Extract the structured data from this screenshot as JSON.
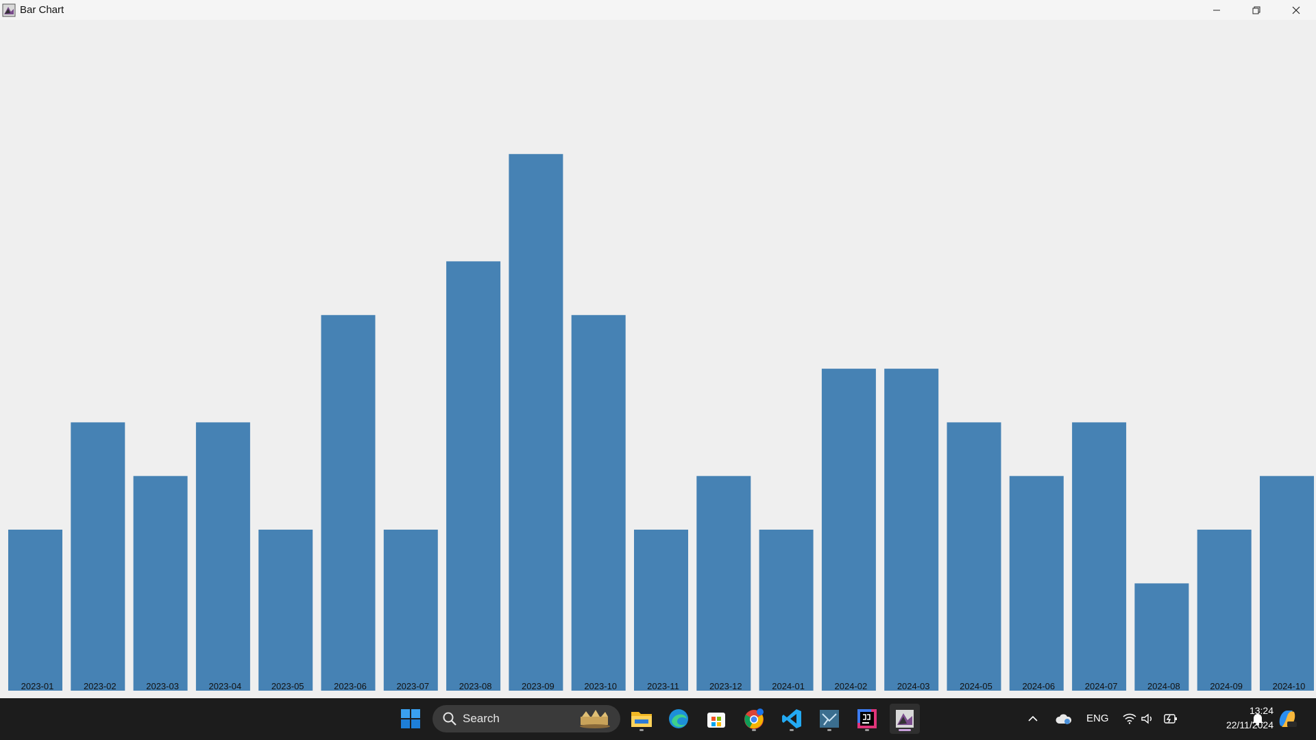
{
  "window": {
    "title": "Bar Chart",
    "controls": [
      "minimize-icon",
      "restore-icon",
      "close-icon"
    ]
  },
  "chart_data": {
    "type": "bar",
    "categories": [
      "2023-01",
      "2023-02",
      "2023-03",
      "2023-04",
      "2023-05",
      "2023-06",
      "2023-07",
      "2023-08",
      "2023-09",
      "2023-10",
      "2023-11",
      "2023-12",
      "2024-01",
      "2024-02",
      "2024-03",
      "2024-05",
      "2024-06",
      "2024-07",
      "2024-08",
      "2024-09",
      "2024-10"
    ],
    "values": [
      3,
      5,
      4,
      5,
      3,
      7,
      3,
      8,
      10,
      7,
      3,
      4,
      3,
      6,
      6,
      5,
      4,
      5,
      2,
      3,
      4
    ],
    "ylim": [
      0,
      12.5
    ],
    "grid": false,
    "legend": "none",
    "bar_color": "#4682b4",
    "title": "",
    "xlabel": "",
    "ylabel": ""
  },
  "taskbar": {
    "search_placeholder": "Search",
    "apps": [
      "start-icon",
      "file-explorer-icon",
      "edge-icon",
      "store-icon",
      "chrome-icon",
      "vscode-icon",
      "terminal-app-icon",
      "jetbrains-icon",
      "java-app-icon"
    ],
    "tray": {
      "language": "ENG",
      "time": "13:24",
      "date": "22/11/2024"
    },
    "colors": {
      "background": "#1c1c1c",
      "accent": "#0078d4"
    }
  }
}
